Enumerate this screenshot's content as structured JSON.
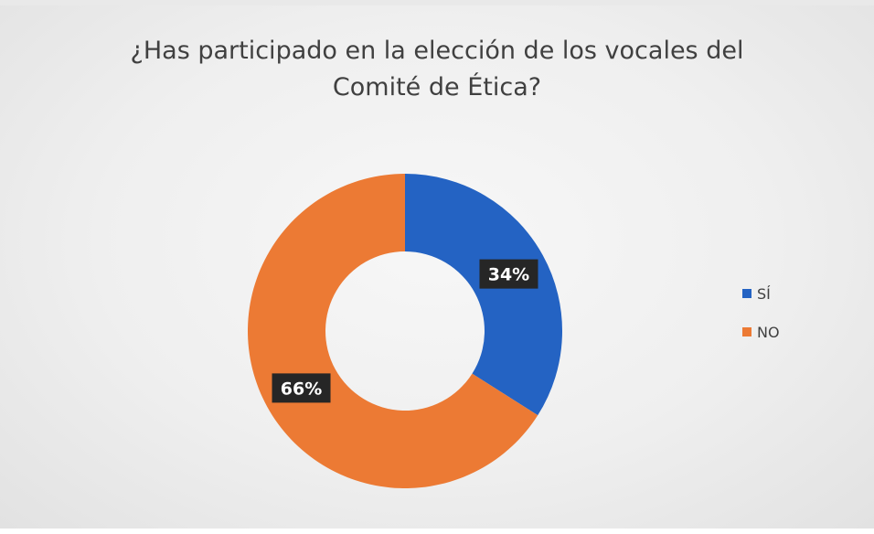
{
  "chart_data": {
    "type": "donut",
    "title": "¿Has participado en la elección de los vocales del Comité de Ética?",
    "title_lines": [
      "¿Has participado en la elección de los vocales del",
      "Comité de Ética?"
    ],
    "categories": [
      "SÍ",
      "NO"
    ],
    "values": [
      34,
      66
    ],
    "data_labels": [
      "34%",
      "66%"
    ],
    "colors": [
      "#2463c3",
      "#ec7a34"
    ],
    "legend_position": "right"
  }
}
